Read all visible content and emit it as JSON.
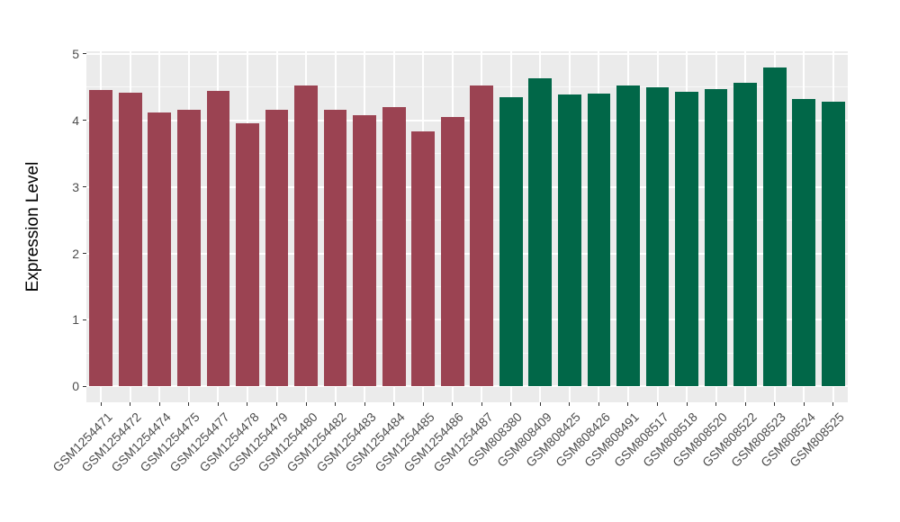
{
  "chart_data": {
    "type": "bar",
    "title": "",
    "xlabel": "",
    "ylabel": "Expression Level",
    "ylim": [
      0,
      5
    ],
    "yticks": [
      0,
      1,
      2,
      3,
      4,
      5
    ],
    "grid": true,
    "legend": false,
    "panel_bg": "#EBEBEB",
    "grid_color": "#FFFFFF",
    "group_colors": {
      "maroon": "#9B4352",
      "green": "#016748"
    },
    "bars": [
      {
        "label": "GSM1254471",
        "value": 4.46,
        "group": "maroon"
      },
      {
        "label": "GSM1254472",
        "value": 4.42,
        "group": "maroon"
      },
      {
        "label": "GSM1254474",
        "value": 4.12,
        "group": "maroon"
      },
      {
        "label": "GSM1254475",
        "value": 4.16,
        "group": "maroon"
      },
      {
        "label": "GSM1254477",
        "value": 4.45,
        "group": "maroon"
      },
      {
        "label": "GSM1254478",
        "value": 3.96,
        "group": "maroon"
      },
      {
        "label": "GSM1254479",
        "value": 4.16,
        "group": "maroon"
      },
      {
        "label": "GSM1254480",
        "value": 4.52,
        "group": "maroon"
      },
      {
        "label": "GSM1254482",
        "value": 4.16,
        "group": "maroon"
      },
      {
        "label": "GSM1254483",
        "value": 4.08,
        "group": "maroon"
      },
      {
        "label": "GSM1254484",
        "value": 4.2,
        "group": "maroon"
      },
      {
        "label": "GSM1254485",
        "value": 3.83,
        "group": "maroon"
      },
      {
        "label": "GSM1254486",
        "value": 4.05,
        "group": "maroon"
      },
      {
        "label": "GSM1254487",
        "value": 4.53,
        "group": "maroon"
      },
      {
        "label": "GSM808380",
        "value": 4.35,
        "group": "green"
      },
      {
        "label": "GSM808409",
        "value": 4.64,
        "group": "green"
      },
      {
        "label": "GSM808425",
        "value": 4.39,
        "group": "green"
      },
      {
        "label": "GSM808426",
        "value": 4.4,
        "group": "green"
      },
      {
        "label": "GSM808491",
        "value": 4.53,
        "group": "green"
      },
      {
        "label": "GSM808517",
        "value": 4.5,
        "group": "green"
      },
      {
        "label": "GSM808518",
        "value": 4.43,
        "group": "green"
      },
      {
        "label": "GSM808520",
        "value": 4.47,
        "group": "green"
      },
      {
        "label": "GSM808522",
        "value": 4.57,
        "group": "green"
      },
      {
        "label": "GSM808523",
        "value": 4.8,
        "group": "green"
      },
      {
        "label": "GSM808524",
        "value": 4.32,
        "group": "green"
      },
      {
        "label": "GSM808525",
        "value": 4.28,
        "group": "green"
      }
    ]
  }
}
